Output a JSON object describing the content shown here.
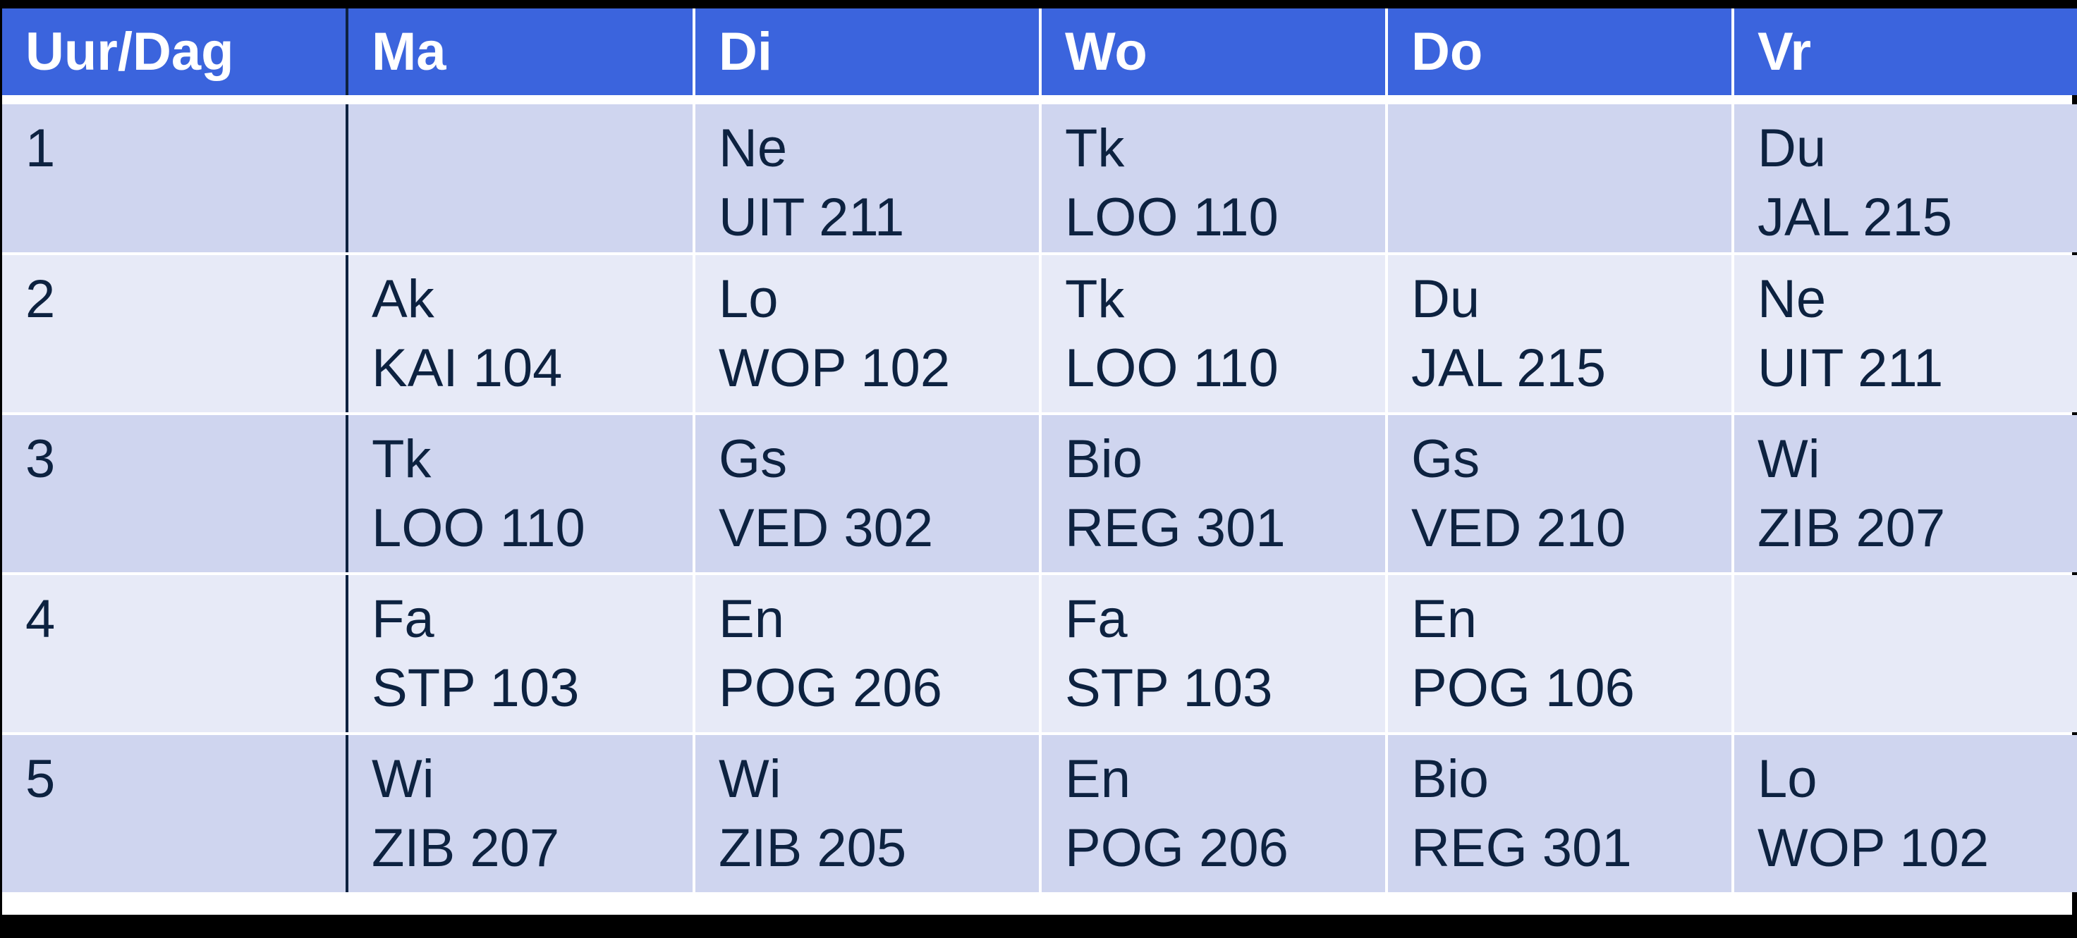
{
  "colors": {
    "header_bg": "#3B64DD",
    "header_text": "#FFFFFF",
    "row_odd_bg": "#CFD5EF",
    "row_even_bg": "#E7EAF7",
    "body_text": "#0D2240",
    "first_column_divider": "#0D2240",
    "background": "#000000"
  },
  "table": {
    "header": {
      "corner": "Uur/Dag",
      "days": [
        "Ma",
        "Di",
        "Wo",
        "Do",
        "Vr"
      ]
    },
    "rows": [
      {
        "hour": "1",
        "cells": [
          {
            "subject": "",
            "room": ""
          },
          {
            "subject": "Ne",
            "room": "UIT 211"
          },
          {
            "subject": "Tk",
            "room": "LOO 110"
          },
          {
            "subject": "",
            "room": ""
          },
          {
            "subject": "Du",
            "room": "JAL 215"
          }
        ]
      },
      {
        "hour": "2",
        "cells": [
          {
            "subject": "Ak",
            "room": "KAI 104"
          },
          {
            "subject": "Lo",
            "room": "WOP 102"
          },
          {
            "subject": "Tk",
            "room": "LOO 110"
          },
          {
            "subject": "Du",
            "room": "JAL 215"
          },
          {
            "subject": "Ne",
            "room": "UIT 211"
          }
        ]
      },
      {
        "hour": "3",
        "cells": [
          {
            "subject": "Tk",
            "room": "LOO 110"
          },
          {
            "subject": "Gs",
            "room": "VED 302"
          },
          {
            "subject": "Bio",
            "room": "REG 301"
          },
          {
            "subject": "Gs",
            "room": "VED 210"
          },
          {
            "subject": "Wi",
            "room": "ZIB 207"
          }
        ]
      },
      {
        "hour": "4",
        "cells": [
          {
            "subject": "Fa",
            "room": "STP 103"
          },
          {
            "subject": "En",
            "room": "POG 206"
          },
          {
            "subject": "Fa",
            "room": "STP 103"
          },
          {
            "subject": "En",
            "room": "POG 106"
          },
          {
            "subject": "",
            "room": ""
          }
        ]
      },
      {
        "hour": "5",
        "cells": [
          {
            "subject": "Wi",
            "room": "ZIB 207"
          },
          {
            "subject": "Wi",
            "room": "ZIB 205"
          },
          {
            "subject": "En",
            "room": "POG 206"
          },
          {
            "subject": "Bio",
            "room": "REG 301"
          },
          {
            "subject": "Lo",
            "room": "WOP 102"
          }
        ]
      }
    ]
  }
}
